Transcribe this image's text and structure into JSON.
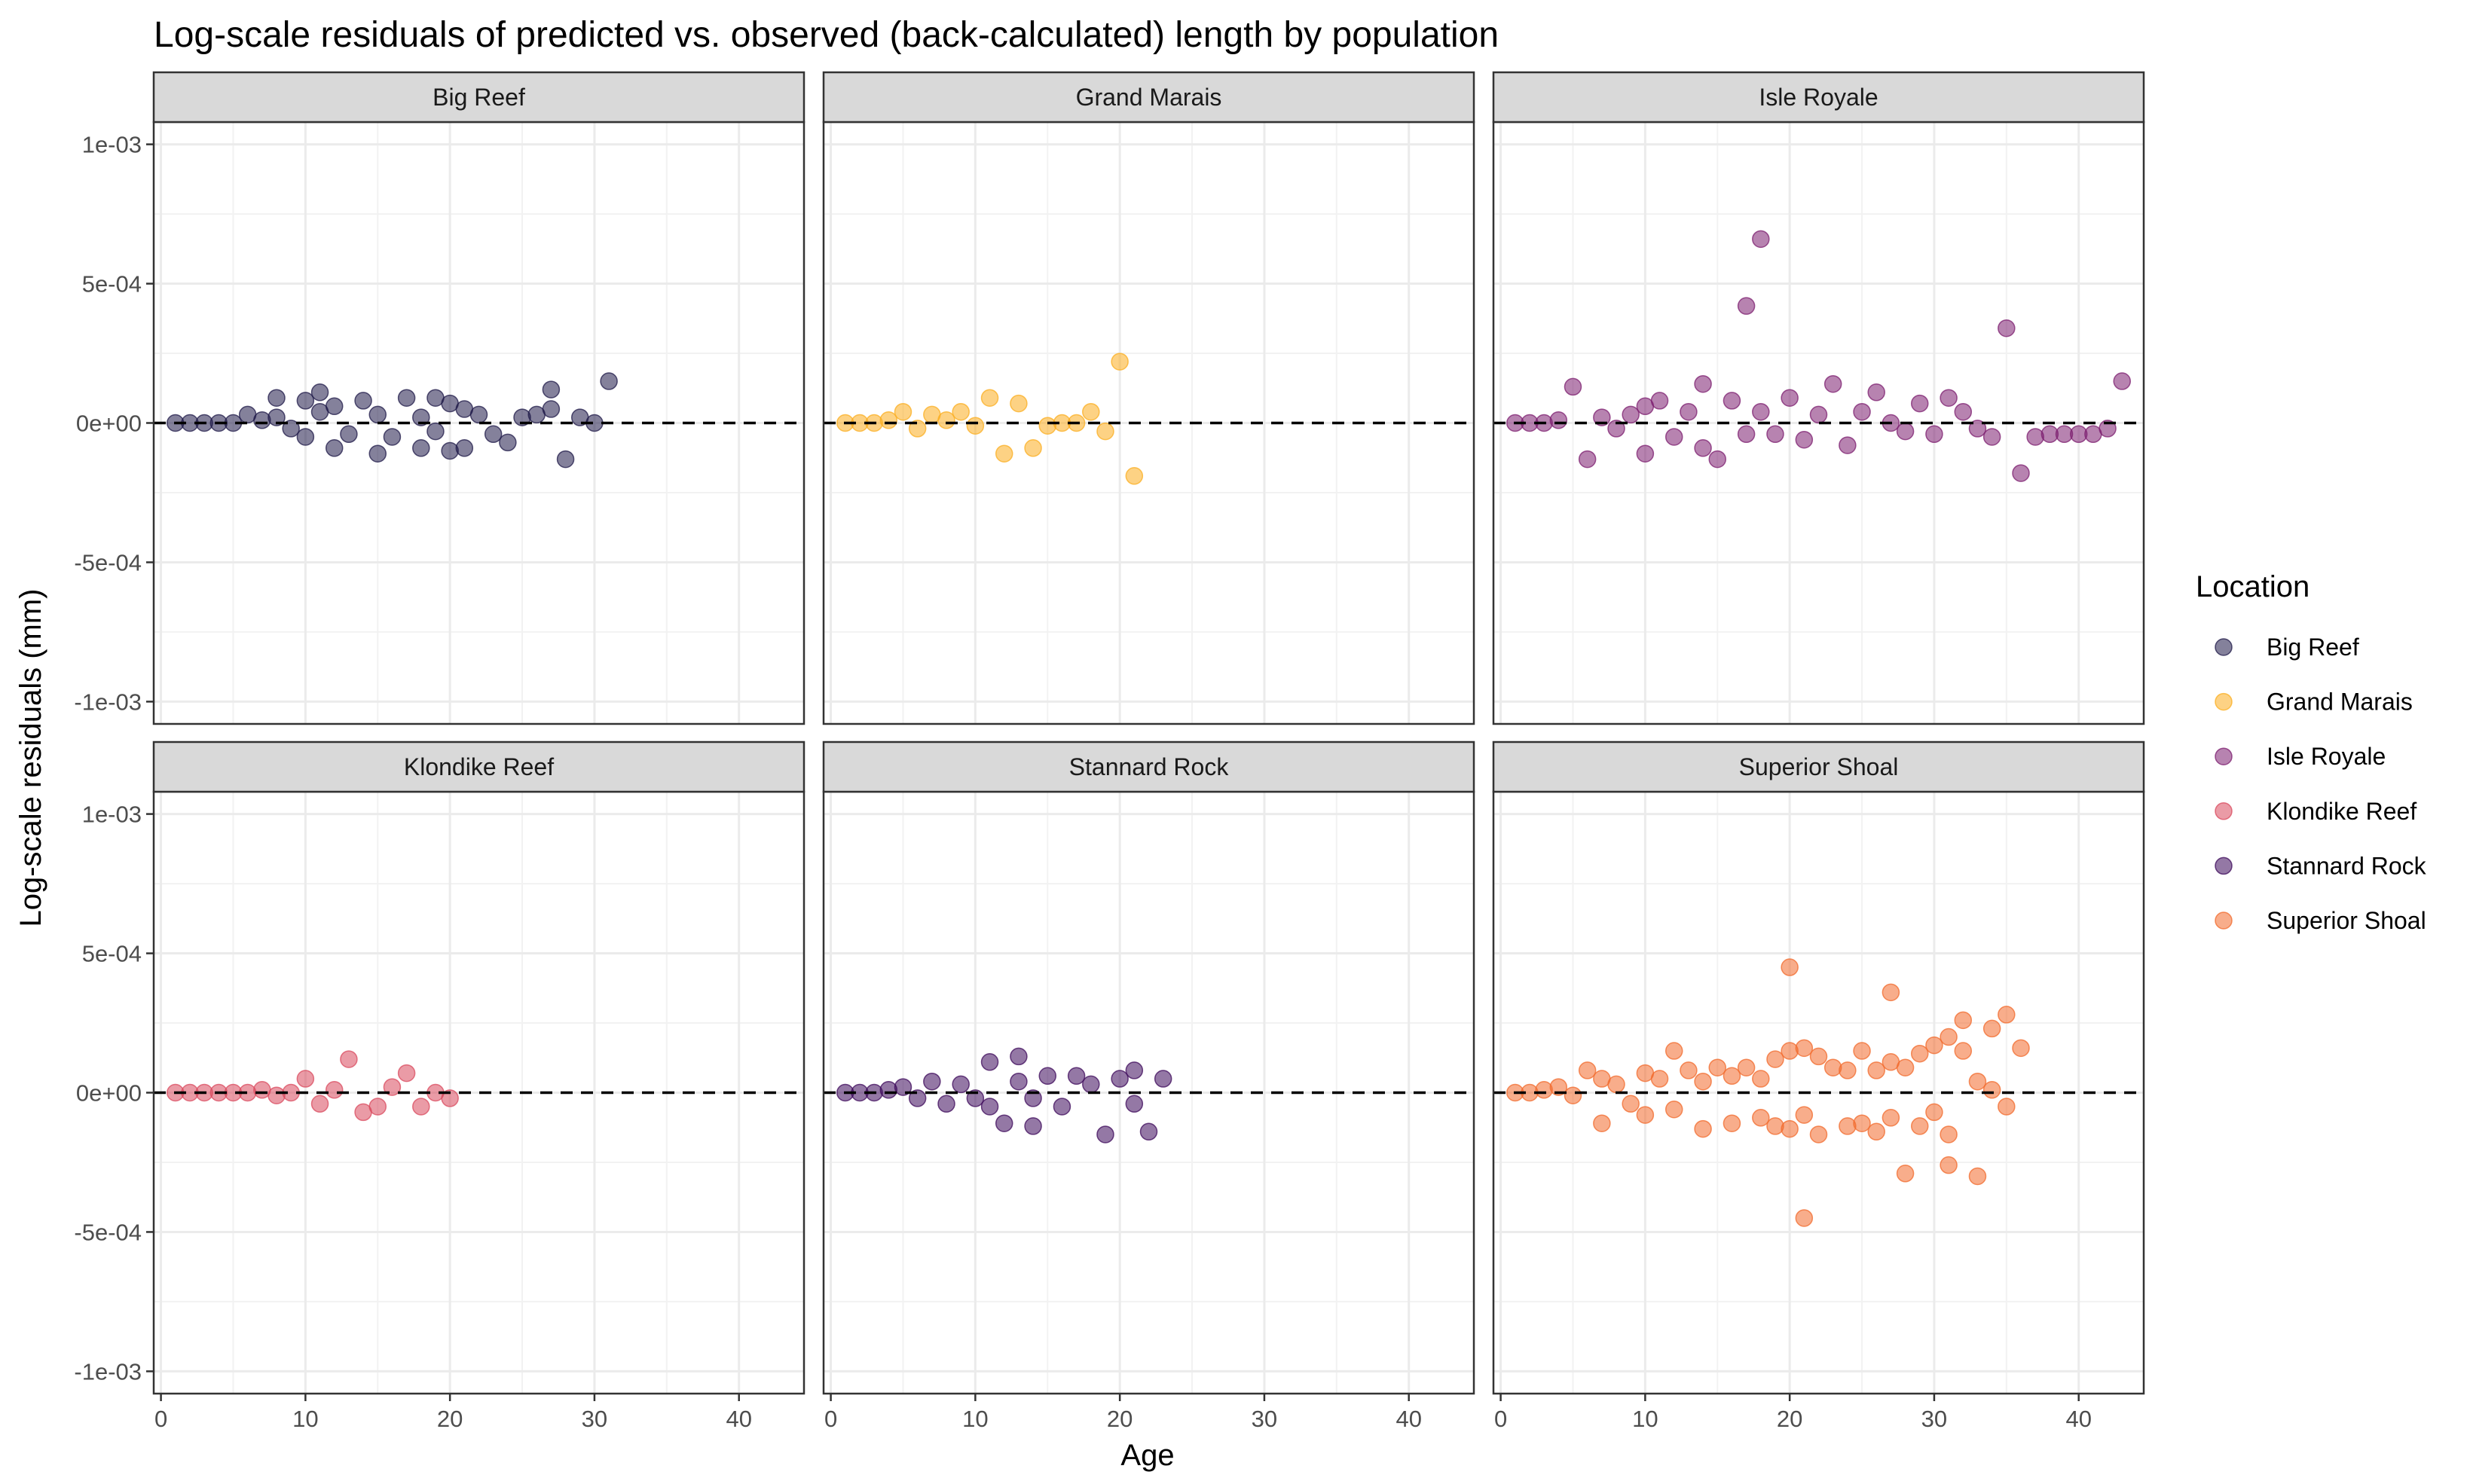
{
  "chart_data": {
    "type": "scatter",
    "title": "Log-scale residuals of predicted vs. observed (back-calculated) length by population",
    "xlabel": "Age",
    "ylabel": "Log-scale residuals (mm)",
    "xlim": [
      -0.5,
      44.5
    ],
    "ylim": [
      -0.00108,
      0.00108
    ],
    "x_ticks": [
      0,
      10,
      20,
      30,
      40
    ],
    "x_tick_labels": [
      "0",
      "10",
      "20",
      "30",
      "40"
    ],
    "y_ticks": [
      0.001,
      0.0005,
      0,
      -0.0005,
      -0.001
    ],
    "y_tick_labels": [
      "1e-03",
      "5e-04",
      "0e+00",
      "-5e-04",
      "-1e-03"
    ],
    "reference_line": {
      "y": 0,
      "style": "dashed"
    },
    "grid": true,
    "legend": {
      "title": "Location",
      "position": "right",
      "entries": [
        "Big Reef",
        "Grand Marais",
        "Isle Royale",
        "Klondike Reef",
        "Stannard Rock",
        "Superior Shoal"
      ]
    },
    "series": [
      {
        "name": "Big Reef",
        "color": "#1f1a48",
        "points": [
          [
            1,
            0
          ],
          [
            2,
            0
          ],
          [
            3,
            0
          ],
          [
            4,
            0
          ],
          [
            5,
            0
          ],
          [
            6,
            3e-05
          ],
          [
            7,
            1e-05
          ],
          [
            8,
            2e-05
          ],
          [
            8,
            9e-05
          ],
          [
            9,
            -2e-05
          ],
          [
            10,
            8e-05
          ],
          [
            10,
            -5e-05
          ],
          [
            11,
            0.00011
          ],
          [
            11,
            4e-05
          ],
          [
            12,
            -9e-05
          ],
          [
            12,
            6e-05
          ],
          [
            13,
            -4e-05
          ],
          [
            14,
            8e-05
          ],
          [
            15,
            -0.00011
          ],
          [
            15,
            3e-05
          ],
          [
            16,
            -5e-05
          ],
          [
            17,
            9e-05
          ],
          [
            18,
            2e-05
          ],
          [
            18,
            -9e-05
          ],
          [
            19,
            9e-05
          ],
          [
            19,
            -3e-05
          ],
          [
            20,
            7e-05
          ],
          [
            20,
            -0.0001
          ],
          [
            21,
            -9e-05
          ],
          [
            21,
            5e-05
          ],
          [
            22,
            3e-05
          ],
          [
            23,
            -4e-05
          ],
          [
            24,
            -7e-05
          ],
          [
            25,
            2e-05
          ],
          [
            26,
            3e-05
          ],
          [
            27,
            0.00012
          ],
          [
            27,
            5e-05
          ],
          [
            28,
            -0.00013
          ],
          [
            29,
            2e-05
          ],
          [
            30,
            0
          ],
          [
            31,
            0.00015
          ]
        ]
      },
      {
        "name": "Grand Marais",
        "color": "#fbad1f",
        "points": [
          [
            1,
            0
          ],
          [
            2,
            0
          ],
          [
            3,
            0
          ],
          [
            4,
            1e-05
          ],
          [
            5,
            4e-05
          ],
          [
            6,
            -2e-05
          ],
          [
            7,
            3e-05
          ],
          [
            8,
            1e-05
          ],
          [
            9,
            4e-05
          ],
          [
            10,
            -1e-05
          ],
          [
            11,
            9e-05
          ],
          [
            12,
            -0.00011
          ],
          [
            13,
            7e-05
          ],
          [
            14,
            -9e-05
          ],
          [
            15,
            -1e-05
          ],
          [
            16,
            0
          ],
          [
            17,
            0
          ],
          [
            18,
            4e-05
          ],
          [
            19,
            -3e-05
          ],
          [
            20,
            0.00022
          ],
          [
            21,
            -0.00019
          ]
        ]
      },
      {
        "name": "Isle Royale",
        "color": "#7c1d6f",
        "points": [
          [
            1,
            0
          ],
          [
            2,
            0
          ],
          [
            3,
            0
          ],
          [
            4,
            1e-05
          ],
          [
            5,
            0.00013
          ],
          [
            6,
            -0.00013
          ],
          [
            7,
            2e-05
          ],
          [
            8,
            -2e-05
          ],
          [
            9,
            3e-05
          ],
          [
            10,
            -0.00011
          ],
          [
            10,
            6e-05
          ],
          [
            11,
            8e-05
          ],
          [
            12,
            -5e-05
          ],
          [
            13,
            4e-05
          ],
          [
            14,
            0.00014
          ],
          [
            14,
            -9e-05
          ],
          [
            15,
            -0.00013
          ],
          [
            16,
            8e-05
          ],
          [
            17,
            0.00042
          ],
          [
            17,
            -4e-05
          ],
          [
            18,
            0.00066
          ],
          [
            18,
            4e-05
          ],
          [
            19,
            -4e-05
          ],
          [
            20,
            9e-05
          ],
          [
            21,
            -6e-05
          ],
          [
            22,
            3e-05
          ],
          [
            23,
            0.00014
          ],
          [
            24,
            -8e-05
          ],
          [
            25,
            4e-05
          ],
          [
            26,
            0.00011
          ],
          [
            27,
            0
          ],
          [
            28,
            -3e-05
          ],
          [
            29,
            7e-05
          ],
          [
            30,
            -4e-05
          ],
          [
            31,
            9e-05
          ],
          [
            32,
            4e-05
          ],
          [
            33,
            -2e-05
          ],
          [
            34,
            -5e-05
          ],
          [
            35,
            0.00034
          ],
          [
            36,
            -0.00018
          ],
          [
            37,
            -5e-05
          ],
          [
            38,
            -4e-05
          ],
          [
            39,
            -4e-05
          ],
          [
            40,
            -4e-05
          ],
          [
            41,
            -4e-05
          ],
          [
            42,
            -2e-05
          ],
          [
            43,
            0.00015
          ]
        ]
      },
      {
        "name": "Klondike Reef",
        "color": "#d9495d",
        "points": [
          [
            1,
            0
          ],
          [
            2,
            0
          ],
          [
            3,
            0
          ],
          [
            4,
            0
          ],
          [
            5,
            0
          ],
          [
            6,
            0
          ],
          [
            7,
            1e-05
          ],
          [
            8,
            -1e-05
          ],
          [
            9,
            0
          ],
          [
            10,
            5e-05
          ],
          [
            11,
            -4e-05
          ],
          [
            12,
            1e-05
          ],
          [
            13,
            0.00012
          ],
          [
            14,
            -7e-05
          ],
          [
            15,
            -5e-05
          ],
          [
            16,
            2e-05
          ],
          [
            17,
            7e-05
          ],
          [
            18,
            -5e-05
          ],
          [
            19,
            0
          ],
          [
            20,
            -2e-05
          ]
        ]
      },
      {
        "name": "Stannard Rock",
        "color": "#3d0a5b",
        "points": [
          [
            1,
            0
          ],
          [
            2,
            0
          ],
          [
            3,
            0
          ],
          [
            4,
            1e-05
          ],
          [
            5,
            2e-05
          ],
          [
            6,
            -2e-05
          ],
          [
            7,
            4e-05
          ],
          [
            8,
            -4e-05
          ],
          [
            9,
            3e-05
          ],
          [
            10,
            -2e-05
          ],
          [
            11,
            0.00011
          ],
          [
            11,
            -5e-05
          ],
          [
            12,
            -0.00011
          ],
          [
            13,
            0.00013
          ],
          [
            13,
            4e-05
          ],
          [
            14,
            -0.00012
          ],
          [
            14,
            -2e-05
          ],
          [
            15,
            6e-05
          ],
          [
            16,
            -5e-05
          ],
          [
            17,
            6e-05
          ],
          [
            18,
            3e-05
          ],
          [
            19,
            -0.00015
          ],
          [
            20,
            5e-05
          ],
          [
            21,
            8e-05
          ],
          [
            21,
            -4e-05
          ],
          [
            22,
            -0.00014
          ],
          [
            23,
            5e-05
          ]
        ]
      },
      {
        "name": "Superior Shoal",
        "color": "#f2692b",
        "points": [
          [
            1,
            0
          ],
          [
            2,
            0
          ],
          [
            3,
            1e-05
          ],
          [
            4,
            2e-05
          ],
          [
            5,
            -1e-05
          ],
          [
            6,
            8e-05
          ],
          [
            7,
            -0.00011
          ],
          [
            7,
            5e-05
          ],
          [
            8,
            3e-05
          ],
          [
            9,
            -4e-05
          ],
          [
            10,
            7e-05
          ],
          [
            10,
            -8e-05
          ],
          [
            11,
            5e-05
          ],
          [
            12,
            0.00015
          ],
          [
            12,
            -6e-05
          ],
          [
            13,
            8e-05
          ],
          [
            14,
            -0.00013
          ],
          [
            14,
            4e-05
          ],
          [
            15,
            9e-05
          ],
          [
            16,
            -0.00011
          ],
          [
            16,
            6e-05
          ],
          [
            17,
            9e-05
          ],
          [
            18,
            -9e-05
          ],
          [
            18,
            5e-05
          ],
          [
            19,
            0.00012
          ],
          [
            19,
            -0.00012
          ],
          [
            20,
            0.00045
          ],
          [
            20,
            0.00015
          ],
          [
            20,
            -0.00013
          ],
          [
            21,
            0.00016
          ],
          [
            21,
            -0.00045
          ],
          [
            21,
            -8e-05
          ],
          [
            22,
            0.00013
          ],
          [
            22,
            -0.00015
          ],
          [
            23,
            9e-05
          ],
          [
            24,
            -0.00012
          ],
          [
            24,
            8e-05
          ],
          [
            25,
            0.00015
          ],
          [
            25,
            -0.00011
          ],
          [
            26,
            8e-05
          ],
          [
            26,
            -0.00014
          ],
          [
            27,
            0.00036
          ],
          [
            27,
            0.00011
          ],
          [
            27,
            -9e-05
          ],
          [
            28,
            -0.00029
          ],
          [
            28,
            9e-05
          ],
          [
            29,
            0.00014
          ],
          [
            29,
            -0.00012
          ],
          [
            30,
            0.00017
          ],
          [
            30,
            -7e-05
          ],
          [
            31,
            0.0002
          ],
          [
            31,
            -0.00026
          ],
          [
            31,
            -0.00015
          ],
          [
            32,
            0.00026
          ],
          [
            32,
            0.00015
          ],
          [
            33,
            -0.0003
          ],
          [
            33,
            4e-05
          ],
          [
            34,
            0.00023
          ],
          [
            34,
            1e-05
          ],
          [
            35,
            0.00028
          ],
          [
            35,
            -5e-05
          ],
          [
            36,
            0.00016
          ]
        ]
      }
    ]
  }
}
